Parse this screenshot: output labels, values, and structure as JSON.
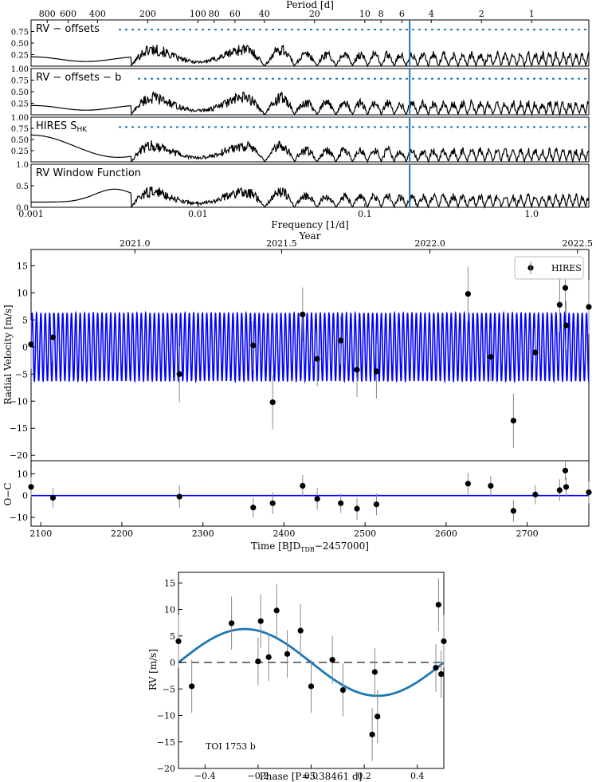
{
  "chart_data": [
    {
      "type": "line",
      "name": "periodograms",
      "title": "Period [d]",
      "xlabel": "Frequency [1/d]",
      "xscale": "log",
      "xlim": [
        0.001,
        2.2
      ],
      "xticks": [
        "0.001",
        "0.01",
        "0.1",
        "1.0"
      ],
      "top_axis": {
        "label": "Period [d]",
        "ticks": [
          {
            "period": 800,
            "label": "800"
          },
          {
            "period": 600,
            "label": "600"
          },
          {
            "period": 400,
            "label": "400"
          },
          {
            "period": 200,
            "label": "200"
          },
          {
            "period": 100,
            "label": "100"
          },
          {
            "period": 80,
            "label": "80"
          },
          {
            "period": 60,
            "label": "60"
          },
          {
            "period": 40,
            "label": "40"
          },
          {
            "period": 20,
            "label": "20"
          },
          {
            "period": 10,
            "label": "10"
          },
          {
            "period": 8,
            "label": "8"
          },
          {
            "period": 6,
            "label": "6"
          },
          {
            "period": 4,
            "label": "4"
          },
          {
            "period": 2,
            "label": "2"
          },
          {
            "period": 1,
            "label": "1"
          }
        ]
      },
      "marked_frequency": 0.1857,
      "marker_color": "#1f77b4",
      "panels": [
        {
          "label": "RV − offsets",
          "ylim": [
            0,
            1.0
          ],
          "yticks": [
            "0.25",
            "0.50",
            "0.75"
          ],
          "fap_level": 0.79
        },
        {
          "label": "RV − offsets − b",
          "ylim": [
            0,
            1.0
          ],
          "yticks": [
            "0.25",
            "0.50",
            "0.75",
            "1.00"
          ],
          "fap_level": 0.78
        },
        {
          "label": "HIRES S",
          "label_sub": "HK",
          "ylim": [
            0,
            1.0
          ],
          "yticks": [
            "0.25",
            "0.50",
            "0.75",
            "1.00"
          ],
          "fap_level": 0.78
        },
        {
          "label": "RV Window Function",
          "ylim": [
            0,
            1.0
          ],
          "yticks": [
            "0.0",
            "0.5",
            "1.0"
          ],
          "fap_level": null
        }
      ]
    },
    {
      "type": "scatter",
      "name": "rv-timeseries",
      "xlabel": "Time [BJD",
      "xlabel_sub": "TDB",
      "xlabel_tail": "−2457000]",
      "ylabel": "Radial Velocity [m/s]",
      "residual_ylabel": "O−C",
      "top_axis_label": "Year",
      "top_ticks": [
        {
          "t": 2216,
          "label": "2021.0"
        },
        {
          "t": 2397,
          "label": "2021.5"
        },
        {
          "t": 2580,
          "label": "2022.0"
        },
        {
          "t": 2762,
          "label": "2022.5"
        }
      ],
      "xlim": [
        2088,
        2776
      ],
      "ylim": [
        -21,
        18
      ],
      "resid_ylim": [
        -14,
        16
      ],
      "xticks": [
        "2100",
        "2200",
        "2300",
        "2400",
        "2500",
        "2600",
        "2700"
      ],
      "yticks": [
        "15",
        "10",
        "5",
        "0",
        "−5",
        "−10",
        "−15",
        "−20"
      ],
      "resid_yticks": [
        "10",
        "0",
        "−10"
      ],
      "legend": "HIRES",
      "model_amplitude": 6.3,
      "model_period": 5.38461,
      "model_color": "#0000ff",
      "points": [
        {
          "t": 2088,
          "rv": 0.5,
          "err": 4.5,
          "res": 4.0
        },
        {
          "t": 2115,
          "rv": 1.8,
          "err": 4.5,
          "res": -1.0
        },
        {
          "t": 2271,
          "rv": -5.0,
          "err": 5.2,
          "res": -0.5
        },
        {
          "t": 2362,
          "rv": 0.3,
          "err": 4.5,
          "res": -5.5
        },
        {
          "t": 2386,
          "rv": -10.2,
          "err": 5.0,
          "res": -3.5
        },
        {
          "t": 2423,
          "rv": 6.0,
          "err": 5.0,
          "res": 4.5
        },
        {
          "t": 2441,
          "rv": -2.2,
          "err": 5.0,
          "res": -1.5
        },
        {
          "t": 2470,
          "rv": 1.2,
          "err": 4.5,
          "res": -3.5
        },
        {
          "t": 2490,
          "rv": -4.2,
          "err": 5.0,
          "res": -6.0
        },
        {
          "t": 2514,
          "rv": -4.5,
          "err": 5.0,
          "res": -4.0
        },
        {
          "t": 2627,
          "rv": 9.8,
          "err": 5.0,
          "res": 5.5
        },
        {
          "t": 2655,
          "rv": -1.8,
          "err": 4.5,
          "res": 4.5
        },
        {
          "t": 2683,
          "rv": -13.6,
          "err": 5.0,
          "res": -7.0
        },
        {
          "t": 2710,
          "rv": -1.0,
          "err": 4.5,
          "res": 0.5
        },
        {
          "t": 2740,
          "rv": 7.8,
          "err": 5.0,
          "res": 2.5
        },
        {
          "t": 2747,
          "rv": 10.9,
          "err": 4.5,
          "res": 11.5
        },
        {
          "t": 2748,
          "rv": 4.0,
          "err": 4.5,
          "res": 4.0
        },
        {
          "t": 2776,
          "rv": 7.4,
          "err": 5.0,
          "res": 1.5
        }
      ]
    },
    {
      "type": "scatter",
      "name": "phase-fold",
      "title": "TOI 1753 b",
      "xlabel": "Phase [P=5.38461 d]",
      "ylabel": "RV [m/s]",
      "xlim": [
        -0.5,
        0.5
      ],
      "ylim": [
        -20,
        17
      ],
      "xticks": [
        "−0.4",
        "−0.2",
        "0.0",
        "0.2",
        "0.4"
      ],
      "yticks": [
        "15",
        "10",
        "5",
        "0",
        "−5",
        "−10",
        "−15",
        "−20"
      ],
      "model_amplitude": 6.3,
      "model_color": "#1f77b4",
      "points": [
        {
          "phase": -0.5,
          "rv": 4.0,
          "err": 5.0
        },
        {
          "phase": -0.45,
          "rv": -4.5,
          "err": 5.0
        },
        {
          "phase": -0.3,
          "rv": 7.4,
          "err": 5.0
        },
        {
          "phase": -0.19,
          "rv": 7.8,
          "err": 5.0
        },
        {
          "phase": -0.2,
          "rv": 0.2,
          "err": 4.5
        },
        {
          "phase": -0.16,
          "rv": 1.0,
          "err": 4.5
        },
        {
          "phase": -0.13,
          "rv": 9.8,
          "err": 5.0
        },
        {
          "phase": -0.09,
          "rv": 1.6,
          "err": 4.5
        },
        {
          "phase": -0.04,
          "rv": 6.0,
          "err": 5.0
        },
        {
          "phase": 0.0,
          "rv": -4.5,
          "err": 5.0
        },
        {
          "phase": 0.08,
          "rv": 0.5,
          "err": 4.5
        },
        {
          "phase": 0.12,
          "rv": -5.2,
          "err": 5.0
        },
        {
          "phase": 0.23,
          "rv": -13.6,
          "err": 5.0
        },
        {
          "phase": 0.24,
          "rv": -1.8,
          "err": 4.5
        },
        {
          "phase": 0.25,
          "rv": -10.2,
          "err": 5.0
        },
        {
          "phase": 0.47,
          "rv": -1.0,
          "err": 4.5
        },
        {
          "phase": 0.48,
          "rv": 10.9,
          "err": 5.0
        },
        {
          "phase": 0.49,
          "rv": -2.2,
          "err": 4.5
        },
        {
          "phase": 0.5,
          "rv": 4.0,
          "err": 5.0
        }
      ]
    }
  ]
}
